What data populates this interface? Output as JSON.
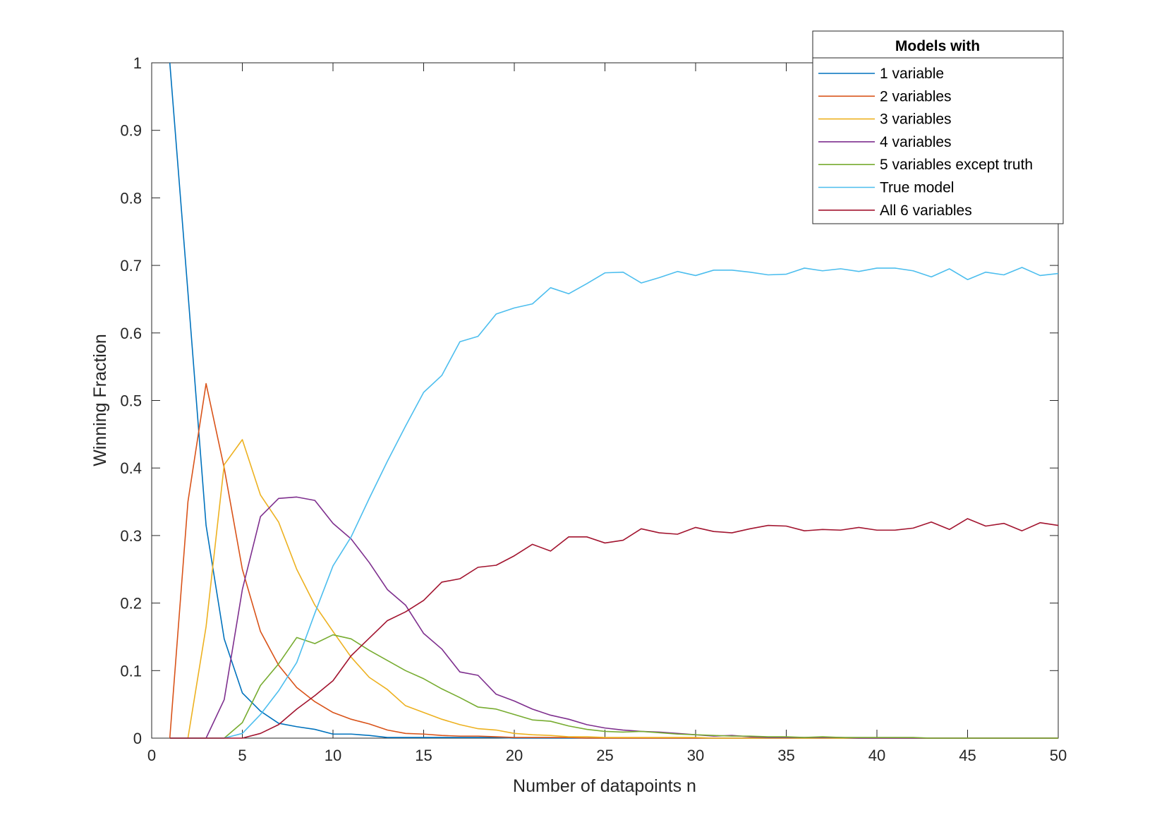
{
  "chart_data": {
    "type": "line",
    "title": "",
    "xlabel": "Number of datapoints n",
    "ylabel": "Winning Fraction",
    "xlim": [
      0,
      50
    ],
    "ylim": [
      0,
      1
    ],
    "xticks": [
      0,
      5,
      10,
      15,
      20,
      25,
      30,
      35,
      40,
      45,
      50
    ],
    "yticks": [
      0,
      0.1,
      0.2,
      0.3,
      0.4,
      0.5,
      0.6,
      0.7,
      0.8,
      0.9,
      1
    ],
    "xtick_labels": [
      "0",
      "5",
      "10",
      "15",
      "20",
      "25",
      "30",
      "35",
      "40",
      "45",
      "50"
    ],
    "ytick_labels": [
      "0",
      "0.1",
      "0.2",
      "0.3",
      "0.4",
      "0.5",
      "0.6",
      "0.7",
      "0.8",
      "0.9",
      "1"
    ],
    "grid": false,
    "legend": {
      "title": "Models with",
      "position": "top-right"
    },
    "x": [
      1,
      2,
      3,
      4,
      5,
      6,
      7,
      8,
      9,
      10,
      11,
      12,
      13,
      14,
      15,
      16,
      17,
      18,
      19,
      20,
      21,
      22,
      23,
      24,
      25,
      26,
      27,
      28,
      29,
      30,
      31,
      32,
      33,
      34,
      35,
      36,
      37,
      38,
      39,
      40,
      41,
      42,
      43,
      44,
      45,
      46,
      47,
      48,
      49,
      50
    ],
    "series": [
      {
        "name": "1 variable",
        "color": "#0072BD",
        "values": [
          1.0,
          0.66,
          0.315,
          0.147,
          0.067,
          0.04,
          0.022,
          0.017,
          0.013,
          0.006,
          0.006,
          0.004,
          0.001,
          0.001,
          0.001,
          0.001,
          0.001,
          0.001,
          0.001,
          0,
          0,
          0,
          0,
          0,
          0,
          0,
          0,
          0,
          0,
          0,
          0,
          0,
          0,
          0,
          0,
          0,
          0,
          0,
          0,
          0,
          0,
          0,
          0,
          0,
          0,
          0,
          0,
          0,
          0,
          0
        ]
      },
      {
        "name": "2 variables",
        "color": "#D95319",
        "values": [
          0,
          0.35,
          0.525,
          0.4,
          0.25,
          0.158,
          0.108,
          0.075,
          0.054,
          0.038,
          0.028,
          0.021,
          0.012,
          0.007,
          0.006,
          0.004,
          0.003,
          0.003,
          0.002,
          0.001,
          0.001,
          0.001,
          0.001,
          0,
          0,
          0,
          0,
          0,
          0,
          0,
          0,
          0,
          0,
          0,
          0,
          0,
          0,
          0,
          0,
          0,
          0,
          0,
          0,
          0,
          0,
          0,
          0,
          0,
          0,
          0
        ]
      },
      {
        "name": "3 variables",
        "color": "#EDB120",
        "values": [
          0,
          0,
          0.165,
          0.405,
          0.442,
          0.36,
          0.32,
          0.25,
          0.197,
          0.158,
          0.12,
          0.09,
          0.072,
          0.048,
          0.038,
          0.028,
          0.02,
          0.014,
          0.012,
          0.007,
          0.005,
          0.004,
          0.002,
          0.002,
          0.001,
          0.001,
          0.001,
          0.001,
          0.001,
          0.001,
          0,
          0,
          0,
          0,
          0,
          0,
          0,
          0,
          0,
          0,
          0,
          0,
          0,
          0,
          0,
          0,
          0,
          0,
          0,
          0
        ]
      },
      {
        "name": "4 variables",
        "color": "#7E2F8E",
        "values": [
          0,
          0,
          0,
          0.057,
          0.22,
          0.328,
          0.355,
          0.357,
          0.352,
          0.318,
          0.295,
          0.26,
          0.22,
          0.197,
          0.155,
          0.132,
          0.098,
          0.093,
          0.065,
          0.055,
          0.043,
          0.034,
          0.028,
          0.02,
          0.015,
          0.012,
          0.01,
          0.009,
          0.007,
          0.005,
          0.003,
          0.004,
          0.002,
          0.001,
          0.001,
          0.001,
          0.001,
          0.001,
          0,
          0,
          0,
          0,
          0,
          0,
          0,
          0,
          0,
          0,
          0,
          0
        ]
      },
      {
        "name": "5 variables except truth",
        "color": "#77AC30",
        "values": [
          0,
          0,
          0,
          0,
          0.023,
          0.078,
          0.11,
          0.149,
          0.14,
          0.153,
          0.147,
          0.13,
          0.115,
          0.1,
          0.088,
          0.073,
          0.06,
          0.046,
          0.043,
          0.035,
          0.027,
          0.025,
          0.018,
          0.013,
          0.01,
          0.009,
          0.01,
          0.008,
          0.006,
          0.005,
          0.004,
          0.003,
          0.003,
          0.002,
          0.002,
          0.001,
          0.002,
          0.001,
          0.001,
          0.001,
          0.001,
          0.001,
          0,
          0,
          0,
          0,
          0,
          0,
          0,
          0
        ]
      },
      {
        "name": "True model",
        "color": "#4DBEEE",
        "values": [
          0,
          0,
          0,
          0,
          0.007,
          0.035,
          0.07,
          0.112,
          0.185,
          0.255,
          0.298,
          0.355,
          0.41,
          0.462,
          0.512,
          0.537,
          0.587,
          0.595,
          0.628,
          0.637,
          0.643,
          0.667,
          0.658,
          0.673,
          0.689,
          0.69,
          0.674,
          0.682,
          0.691,
          0.685,
          0.693,
          0.693,
          0.69,
          0.686,
          0.687,
          0.696,
          0.692,
          0.695,
          0.691,
          0.696,
          0.696,
          0.692,
          0.683,
          0.695,
          0.679,
          0.69,
          0.686,
          0.697,
          0.685,
          0.688
        ]
      },
      {
        "name": "All 6 variables",
        "color": "#A2142F",
        "values": [
          0,
          0,
          0,
          0,
          0,
          0.007,
          0.02,
          0.043,
          0.063,
          0.085,
          0.122,
          0.148,
          0.174,
          0.187,
          0.204,
          0.231,
          0.236,
          0.253,
          0.256,
          0.27,
          0.287,
          0.277,
          0.298,
          0.298,
          0.289,
          0.293,
          0.31,
          0.304,
          0.302,
          0.312,
          0.306,
          0.304,
          0.31,
          0.315,
          0.314,
          0.307,
          0.309,
          0.308,
          0.312,
          0.308,
          0.308,
          0.311,
          0.32,
          0.309,
          0.325,
          0.314,
          0.318,
          0.307,
          0.319,
          0.315
        ]
      }
    ]
  }
}
